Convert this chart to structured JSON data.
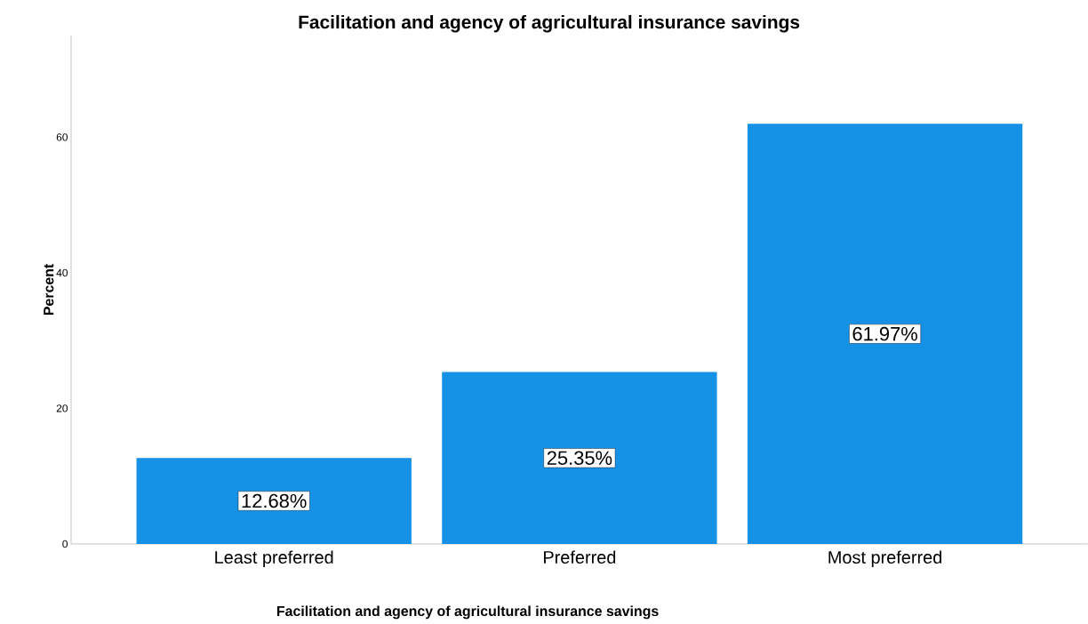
{
  "chart_data": {
    "type": "bar",
    "title": "Facilitation and agency of agricultural insurance savings",
    "xlabel": "Facilitation and agency of agricultural insurance savings",
    "ylabel": "Percent",
    "categories": [
      "Least preferred",
      "Preferred",
      "Most preferred"
    ],
    "values": [
      12.68,
      25.35,
      61.97
    ],
    "value_labels": [
      "12.68%",
      "25.35%",
      "61.97%"
    ],
    "color": "#1591e6",
    "ylim": [
      0,
      75
    ],
    "yticks": [
      0,
      20,
      40,
      60
    ]
  }
}
